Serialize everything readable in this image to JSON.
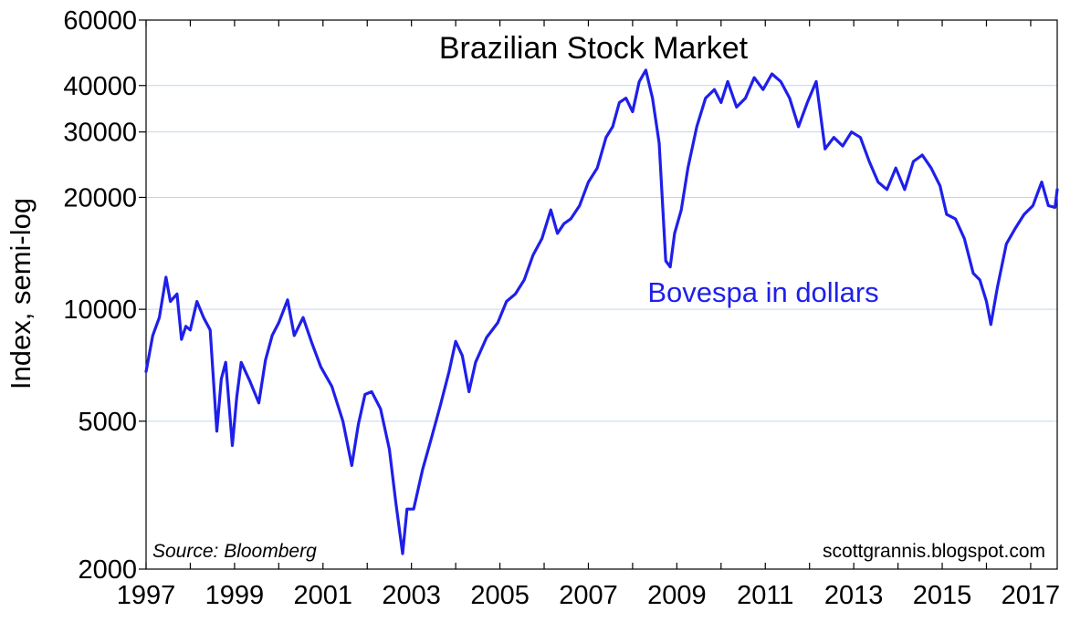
{
  "chart_data": {
    "type": "line",
    "title": "Brazilian Stock Market",
    "ylabel": "Index, semi-log",
    "xlabel": "",
    "yscale": "log",
    "ylim": [
      2000,
      60000
    ],
    "xlim": [
      1997,
      2017.6
    ],
    "grid": "horizontal",
    "yticks": [
      2000,
      5000,
      10000,
      20000,
      30000,
      40000,
      60000
    ],
    "ytick_labels": [
      "2000",
      "5000",
      "10000",
      "20000",
      "30000",
      "40000",
      "60000"
    ],
    "xtick_labels": [
      "1997",
      "1999",
      "2001",
      "2003",
      "2005",
      "2007",
      "2009",
      "2011",
      "2013",
      "2015",
      "2017"
    ],
    "xtick_values": [
      1997,
      1999,
      2001,
      2003,
      2005,
      2007,
      2009,
      2011,
      2013,
      2015,
      2017
    ],
    "colors": {
      "series": "#1f1fea",
      "grid": "#bcd9ee",
      "axis": "#000000"
    },
    "source": "Source:  Bloomberg",
    "credit": "scottgrannis.blogspot.com",
    "series": [
      {
        "name": "Bovespa in dollars",
        "x": [
          1997.0,
          1997.15,
          1997.3,
          1997.45,
          1997.55,
          1997.7,
          1997.8,
          1997.9,
          1998.0,
          1998.15,
          1998.3,
          1998.45,
          1998.6,
          1998.7,
          1998.8,
          1998.95,
          1999.05,
          1999.15,
          1999.35,
          1999.55,
          1999.7,
          1999.85,
          2000.0,
          2000.2,
          2000.35,
          2000.55,
          2000.75,
          2000.95,
          2001.2,
          2001.45,
          2001.65,
          2001.8,
          2001.95,
          2002.1,
          2002.3,
          2002.5,
          2002.65,
          2002.8,
          2002.9,
          2003.05,
          2003.25,
          2003.45,
          2003.65,
          2003.85,
          2004.0,
          2004.15,
          2004.3,
          2004.45,
          2004.7,
          2004.95,
          2005.15,
          2005.35,
          2005.55,
          2005.75,
          2005.95,
          2006.15,
          2006.3,
          2006.45,
          2006.6,
          2006.8,
          2007.0,
          2007.2,
          2007.4,
          2007.55,
          2007.7,
          2007.85,
          2008.0,
          2008.15,
          2008.3,
          2008.45,
          2008.6,
          2008.75,
          2008.85,
          2008.95,
          2009.1,
          2009.25,
          2009.45,
          2009.65,
          2009.85,
          2010.0,
          2010.15,
          2010.35,
          2010.55,
          2010.75,
          2010.95,
          2011.15,
          2011.35,
          2011.55,
          2011.75,
          2011.95,
          2012.15,
          2012.35,
          2012.55,
          2012.75,
          2012.95,
          2013.15,
          2013.35,
          2013.55,
          2013.75,
          2013.95,
          2014.15,
          2014.35,
          2014.55,
          2014.75,
          2014.95,
          2015.1,
          2015.3,
          2015.5,
          2015.7,
          2015.85,
          2016.0,
          2016.1,
          2016.25,
          2016.45,
          2016.65,
          2016.85,
          2017.05,
          2017.25,
          2017.4,
          2017.55,
          2017.6
        ],
        "values": [
          6800,
          8500,
          9500,
          12200,
          10500,
          11000,
          8300,
          9000,
          8800,
          10500,
          9500,
          8800,
          4700,
          6500,
          7200,
          4300,
          5800,
          7200,
          6400,
          5600,
          7300,
          8500,
          9200,
          10600,
          8500,
          9500,
          8100,
          7000,
          6200,
          5000,
          3800,
          4900,
          5900,
          6000,
          5400,
          4200,
          3000,
          2200,
          2900,
          2900,
          3700,
          4500,
          5500,
          6800,
          8200,
          7500,
          6000,
          7200,
          8400,
          9200,
          10500,
          11000,
          12000,
          14000,
          15500,
          18500,
          16000,
          17000,
          17500,
          19000,
          22000,
          24000,
          29000,
          31000,
          36000,
          37000,
          34000,
          41000,
          44000,
          37000,
          28000,
          13500,
          13000,
          16000,
          18500,
          24000,
          31000,
          37000,
          39000,
          36000,
          41000,
          35000,
          37000,
          42000,
          39000,
          43000,
          41000,
          37000,
          31000,
          36000,
          41000,
          27000,
          29000,
          27500,
          30000,
          29000,
          25000,
          22000,
          21000,
          24000,
          21000,
          25000,
          26000,
          24000,
          21500,
          18000,
          17500,
          15500,
          12500,
          12000,
          10500,
          9100,
          11500,
          15000,
          16500,
          18000,
          19000,
          22000,
          19000,
          18800,
          21000
        ]
      }
    ]
  }
}
